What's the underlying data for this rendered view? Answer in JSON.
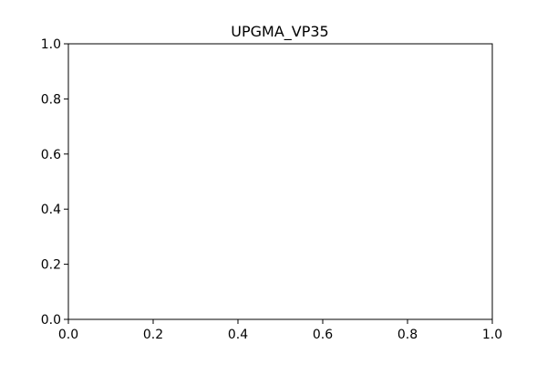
{
  "chart_data": {
    "type": "line",
    "title": "UPGMA_VP35",
    "xlabel": "",
    "ylabel": "",
    "xlim": [
      0.0,
      1.0
    ],
    "ylim": [
      0.0,
      1.0
    ],
    "x_ticks": [
      0.0,
      0.2,
      0.4,
      0.6,
      0.8,
      1.0
    ],
    "y_ticks": [
      0.0,
      0.2,
      0.4,
      0.6,
      0.8,
      1.0
    ],
    "x_tick_labels": [
      "0.0",
      "0.2",
      "0.4",
      "0.6",
      "0.8",
      "1.0"
    ],
    "y_tick_labels": [
      "0.0",
      "0.2",
      "0.4",
      "0.6",
      "0.8",
      "1.0"
    ],
    "grid": false,
    "series": []
  }
}
